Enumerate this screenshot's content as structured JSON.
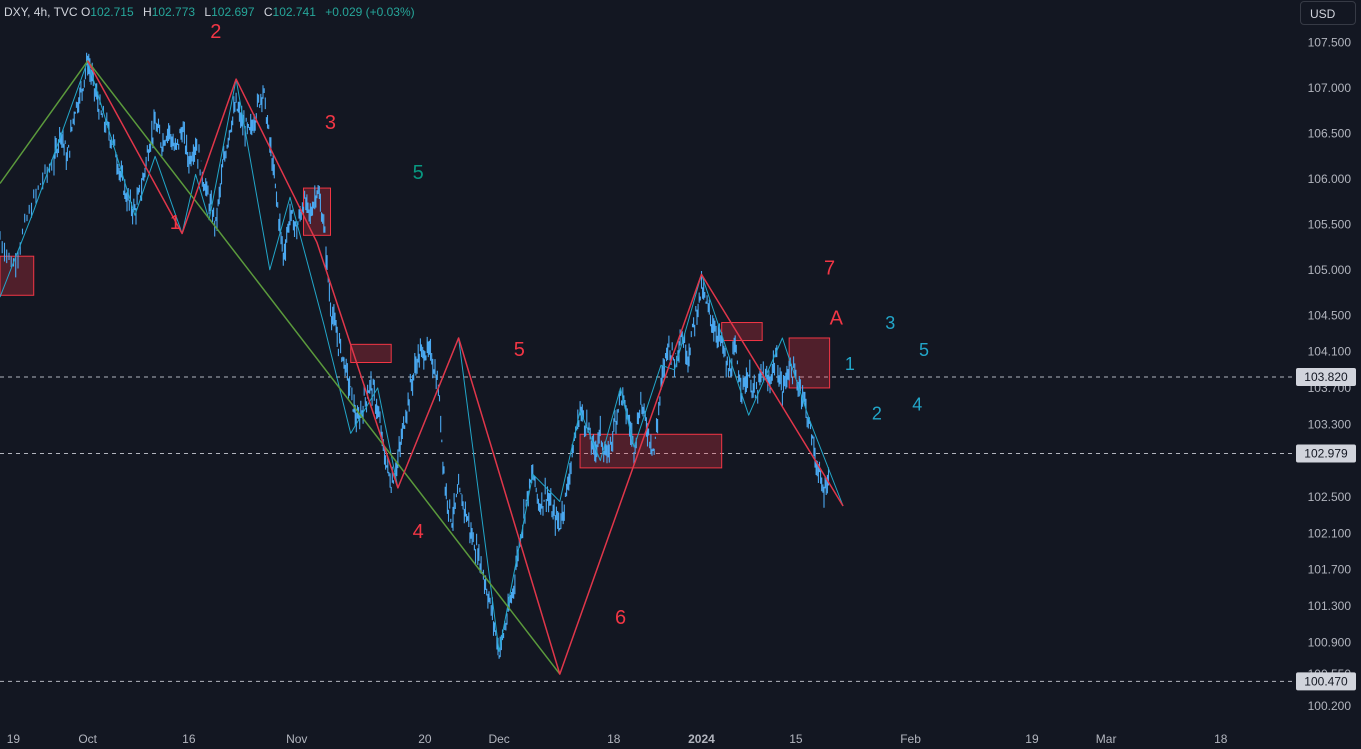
{
  "legend": {
    "symbol": "DXY, 4h, TVC",
    "open_label": "O",
    "open": "102.715",
    "high_label": "H",
    "high": "102.773",
    "low_label": "L",
    "low": "102.697",
    "close_label": "C",
    "close": "102.741",
    "change": "+0.029 (+0.03%)"
  },
  "currency_button": "USD",
  "chart_data": {
    "type": "line",
    "symbol": "DXY",
    "timeframe": "4h",
    "y_range": [
      100.1,
      107.75
    ],
    "x_range": [
      -12,
      180
    ],
    "x_ticks": [
      {
        "label": "19",
        "x": -11
      },
      {
        "label": "Oct",
        "x": 1
      },
      {
        "label": "16",
        "x": 16
      },
      {
        "label": "Nov",
        "x": 32
      },
      {
        "label": "20",
        "x": 51
      },
      {
        "label": "Dec",
        "x": 62
      },
      {
        "label": "18",
        "x": 79
      },
      {
        "label": "2024",
        "x": 92,
        "bold": true
      },
      {
        "label": "15",
        "x": 106
      },
      {
        "label": "Feb",
        "x": 123
      },
      {
        "label": "19",
        "x": 141
      },
      {
        "label": "Mar",
        "x": 152
      },
      {
        "label": "18",
        "x": 169
      }
    ],
    "y_ticks": [
      "107.500",
      "107.000",
      "106.500",
      "106.000",
      "105.500",
      "105.000",
      "104.500",
      "104.100",
      "103.700",
      "103.300",
      "102.500",
      "102.100",
      "101.700",
      "101.300",
      "100.900",
      "100.550",
      "100.200"
    ],
    "price_lines": [
      {
        "label": "103.820",
        "value": 103.82
      },
      {
        "label": "102.979",
        "value": 102.979
      },
      {
        "label": "100.470",
        "value": 100.47
      }
    ],
    "price_series": [
      [
        -12,
        105.35
      ],
      [
        -10,
        105.05
      ],
      [
        -8,
        105.55
      ],
      [
        -6,
        105.95
      ],
      [
        -4,
        106.2
      ],
      [
        -3,
        106.55
      ],
      [
        -2,
        106.2
      ],
      [
        -1,
        106.75
      ],
      [
        0,
        106.95
      ],
      [
        1,
        107.3
      ],
      [
        2,
        107.0
      ],
      [
        3,
        106.7
      ],
      [
        4,
        106.55
      ],
      [
        5,
        106.35
      ],
      [
        6,
        106.0
      ],
      [
        7,
        105.75
      ],
      [
        8,
        105.65
      ],
      [
        9,
        105.9
      ],
      [
        10,
        106.35
      ],
      [
        11,
        106.6
      ],
      [
        12,
        106.4
      ],
      [
        13,
        106.55
      ],
      [
        14,
        106.3
      ],
      [
        15,
        106.55
      ],
      [
        16,
        106.2
      ],
      [
        17,
        106.4
      ],
      [
        18,
        106.05
      ],
      [
        19,
        105.75
      ],
      [
        20,
        105.5
      ],
      [
        21,
        106.1
      ],
      [
        22,
        106.55
      ],
      [
        23,
        106.8
      ],
      [
        24,
        106.6
      ],
      [
        25,
        106.5
      ],
      [
        26,
        106.75
      ],
      [
        27,
        107.0
      ],
      [
        28,
        106.4
      ],
      [
        29,
        105.8
      ],
      [
        30,
        105.15
      ],
      [
        31,
        105.6
      ],
      [
        32,
        105.45
      ],
      [
        33,
        105.75
      ],
      [
        34,
        105.6
      ],
      [
        35,
        105.9
      ],
      [
        36,
        105.5
      ],
      [
        37,
        104.6
      ],
      [
        38,
        104.25
      ],
      [
        39,
        104.0
      ],
      [
        40,
        103.65
      ],
      [
        41,
        103.3
      ],
      [
        42,
        103.55
      ],
      [
        43,
        103.75
      ],
      [
        44,
        103.45
      ],
      [
        45,
        102.95
      ],
      [
        46,
        102.65
      ],
      [
        47,
        102.9
      ],
      [
        48,
        103.35
      ],
      [
        49,
        103.75
      ],
      [
        50,
        104.05
      ],
      [
        51,
        104.1
      ],
      [
        52,
        104.05
      ],
      [
        53,
        103.7
      ],
      [
        54,
        102.6
      ],
      [
        55,
        102.25
      ],
      [
        56,
        102.55
      ],
      [
        57,
        102.35
      ],
      [
        58,
        102.05
      ],
      [
        59,
        101.85
      ],
      [
        60,
        101.55
      ],
      [
        61,
        101.2
      ],
      [
        62,
        100.8
      ],
      [
        63,
        101.1
      ],
      [
        64,
        101.45
      ],
      [
        65,
        102.0
      ],
      [
        66,
        102.45
      ],
      [
        67,
        102.75
      ],
      [
        68,
        102.4
      ],
      [
        69,
        102.55
      ],
      [
        70,
        102.3
      ],
      [
        71,
        102.2
      ],
      [
        72,
        102.55
      ],
      [
        73,
        103.05
      ],
      [
        74,
        103.45
      ],
      [
        75,
        103.3
      ],
      [
        76,
        103.0
      ],
      [
        77,
        103.2
      ],
      [
        78,
        102.9
      ],
      [
        79,
        103.25
      ],
      [
        80,
        103.65
      ],
      [
        81,
        103.4
      ],
      [
        82,
        103.05
      ],
      [
        83,
        103.55
      ],
      [
        84,
        103.25
      ],
      [
        85,
        103.0
      ],
      [
        86,
        103.7
      ],
      [
        87,
        104.2
      ],
      [
        88,
        104.0
      ],
      [
        89,
        104.3
      ],
      [
        90,
        104.05
      ],
      [
        91,
        104.45
      ],
      [
        92,
        104.8
      ],
      [
        93,
        104.55
      ],
      [
        94,
        104.35
      ],
      [
        95,
        104.2
      ],
      [
        96,
        103.85
      ],
      [
        97,
        104.1
      ],
      [
        98,
        103.7
      ],
      [
        99,
        103.85
      ],
      [
        100,
        103.6
      ],
      [
        101,
        103.85
      ],
      [
        102,
        103.75
      ],
      [
        103,
        104.05
      ],
      [
        104,
        103.65
      ],
      [
        105,
        103.95
      ],
      [
        106,
        103.8
      ],
      [
        107,
        103.65
      ],
      [
        108,
        103.3
      ],
      [
        109,
        102.9
      ],
      [
        110,
        102.55
      ],
      [
        111,
        102.75
      ]
    ],
    "zigzag_green": [
      [
        -12,
        105.95
      ],
      [
        1,
        107.3
      ],
      [
        71,
        100.55
      ]
    ],
    "zigzag_red": [
      [
        1,
        107.3
      ],
      [
        15,
        105.4
      ],
      [
        23,
        107.1
      ],
      [
        35,
        105.3
      ],
      [
        47,
        102.6
      ],
      [
        56,
        104.25
      ],
      [
        71,
        100.55
      ],
      [
        92,
        104.95
      ],
      [
        113,
        102.4
      ]
    ],
    "zigzag_cyan": [
      [
        -12,
        104.7
      ],
      [
        -7,
        105.65
      ],
      [
        1,
        107.3
      ],
      [
        8,
        105.6
      ],
      [
        11,
        106.25
      ],
      [
        15,
        105.4
      ],
      [
        17,
        106.05
      ],
      [
        19,
        105.55
      ],
      [
        23,
        107.1
      ],
      [
        28,
        105.0
      ],
      [
        31,
        105.8
      ],
      [
        36,
        104.4
      ],
      [
        40,
        103.2
      ],
      [
        44,
        103.7
      ],
      [
        47,
        102.6
      ],
      [
        56,
        104.25
      ],
      [
        62,
        100.8
      ],
      [
        67,
        102.75
      ],
      [
        71,
        102.45
      ],
      [
        74,
        103.45
      ],
      [
        77,
        102.9
      ],
      [
        80,
        103.7
      ],
      [
        82,
        103.05
      ],
      [
        86,
        103.95
      ],
      [
        88,
        103.9
      ],
      [
        92,
        104.95
      ],
      [
        99,
        103.4
      ],
      [
        104,
        104.25
      ],
      [
        108,
        103.35
      ],
      [
        113,
        102.4
      ]
    ],
    "boxes": [
      {
        "x0": -12,
        "x1": -7,
        "y0": 104.72,
        "y1": 105.15
      },
      {
        "x0": 33,
        "x1": 37,
        "y0": 105.38,
        "y1": 105.9
      },
      {
        "x0": 40,
        "x1": 46,
        "y0": 103.98,
        "y1": 104.18
      },
      {
        "x0": 74,
        "x1": 95,
        "y0": 102.82,
        "y1": 103.19
      },
      {
        "x0": 95,
        "x1": 101,
        "y0": 104.38,
        "y1": 104.42
      },
      {
        "x0": 105,
        "x1": 111,
        "y0": 103.7,
        "y1": 104.25
      }
    ],
    "wave_labels": [
      {
        "text": "2",
        "x": 20,
        "y": 107.55,
        "color": "#f23645",
        "size": 20
      },
      {
        "text": "1",
        "x": 14,
        "y": 105.45,
        "color": "#f23645",
        "size": 20
      },
      {
        "text": "3",
        "x": 37,
        "y": 106.55,
        "color": "#f23645",
        "size": 20
      },
      {
        "text": "5",
        "x": 50,
        "y": 106.0,
        "color": "#089981",
        "size": 20
      },
      {
        "text": "4",
        "x": 50,
        "y": 102.05,
        "color": "#f23645",
        "size": 20
      },
      {
        "text": "5",
        "x": 65,
        "y": 104.05,
        "color": "#f23645",
        "size": 20
      },
      {
        "text": "6",
        "x": 80,
        "y": 101.1,
        "color": "#f23645",
        "size": 20
      },
      {
        "text": "7",
        "x": 111,
        "y": 104.95,
        "color": "#f23645",
        "size": 20
      },
      {
        "text": "A",
        "x": 112,
        "y": 104.4,
        "color": "#f23645",
        "size": 20
      },
      {
        "text": "3",
        "x": 120,
        "y": 104.35,
        "color": "#22a6c9",
        "size": 18
      },
      {
        "text": "5",
        "x": 125,
        "y": 104.05,
        "color": "#22a6c9",
        "size": 18
      },
      {
        "text": "1",
        "x": 114,
        "y": 103.9,
        "color": "#22a6c9",
        "size": 18
      },
      {
        "text": "2",
        "x": 118,
        "y": 103.35,
        "color": "#22a6c9",
        "size": 18
      },
      {
        "text": "4",
        "x": 124,
        "y": 103.45,
        "color": "#22a6c9",
        "size": 18
      }
    ]
  }
}
